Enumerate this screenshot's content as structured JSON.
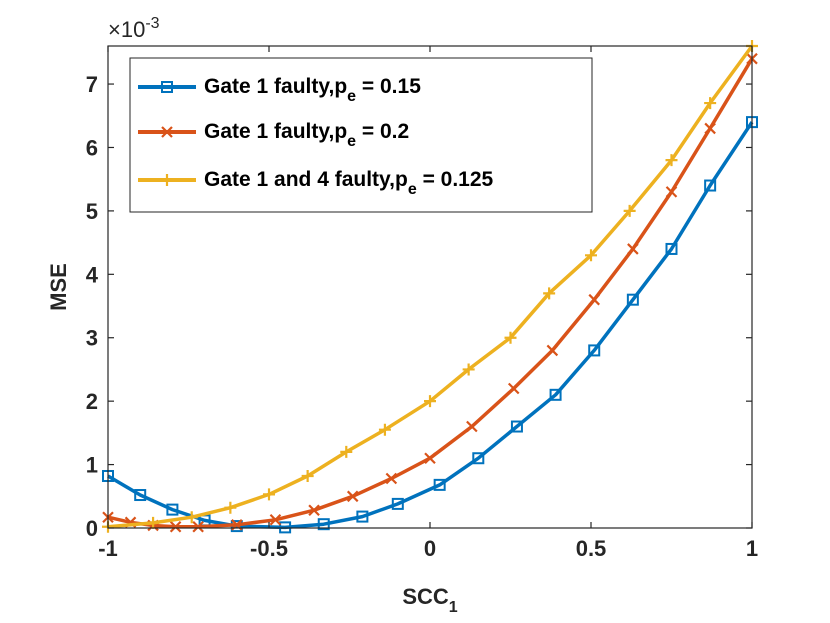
{
  "chart_data": {
    "type": "line",
    "title": "",
    "xlabel": "SCC",
    "xlabel_sub": "1",
    "ylabel": "MSE",
    "y_exponent_prefix": "×10",
    "y_exponent": "-3",
    "xlim": [
      -1,
      1
    ],
    "ylim": [
      0,
      7.6
    ],
    "x_ticks": [
      -1,
      -0.5,
      0,
      0.5,
      1
    ],
    "x_tick_labels": [
      "-1",
      "-0.5",
      "0",
      "0.5",
      "1"
    ],
    "y_ticks": [
      0,
      1,
      2,
      3,
      4,
      5,
      6,
      7
    ],
    "y_tick_labels": [
      "0",
      "1",
      "2",
      "3",
      "4",
      "5",
      "6",
      "7"
    ],
    "grid": false,
    "legend_position": "top-left",
    "series": [
      {
        "name": "Gate 1 faulty,p",
        "name_sub": "e",
        "name_suffix": " = 0.15",
        "color": "#0072BD",
        "marker": "square",
        "x": [
          -1.0,
          -0.9,
          -0.8,
          -0.7,
          -0.6,
          -0.45,
          -0.33,
          -0.21,
          -0.1,
          0.03,
          0.15,
          0.27,
          0.39,
          0.51,
          0.63,
          0.75,
          0.87,
          1.0
        ],
        "y": [
          0.82,
          0.52,
          0.29,
          0.12,
          0.03,
          0.01,
          0.06,
          0.18,
          0.38,
          0.68,
          1.1,
          1.6,
          2.1,
          2.8,
          3.6,
          4.4,
          5.4,
          6.4
        ]
      },
      {
        "name": "Gate 1 faulty,p",
        "name_sub": "e",
        "name_suffix": " = 0.2",
        "color": "#D95319",
        "marker": "x",
        "x": [
          -1.0,
          -0.93,
          -0.86,
          -0.79,
          -0.72,
          -0.6,
          -0.48,
          -0.36,
          -0.24,
          -0.12,
          0.0,
          0.13,
          0.26,
          0.38,
          0.51,
          0.63,
          0.75,
          0.87,
          1.0
        ],
        "y": [
          0.17,
          0.09,
          0.04,
          0.02,
          0.02,
          0.05,
          0.13,
          0.28,
          0.5,
          0.78,
          1.1,
          1.6,
          2.2,
          2.8,
          3.6,
          4.4,
          5.3,
          6.3,
          7.4
        ]
      },
      {
        "name": "Gate 1 and 4 faulty,p",
        "name_sub": "e",
        "name_suffix": " = 0.125",
        "color": "#EDB120",
        "marker": "plus",
        "x": [
          -1.0,
          -0.86,
          -0.74,
          -0.62,
          -0.5,
          -0.38,
          -0.26,
          -0.14,
          0.0,
          0.12,
          0.25,
          0.37,
          0.5,
          0.62,
          0.75,
          0.87,
          1.0
        ],
        "y": [
          0.02,
          0.08,
          0.17,
          0.32,
          0.53,
          0.82,
          1.2,
          1.55,
          2.0,
          2.5,
          3.0,
          3.7,
          4.3,
          5.0,
          5.8,
          6.7,
          7.6
        ]
      }
    ]
  }
}
